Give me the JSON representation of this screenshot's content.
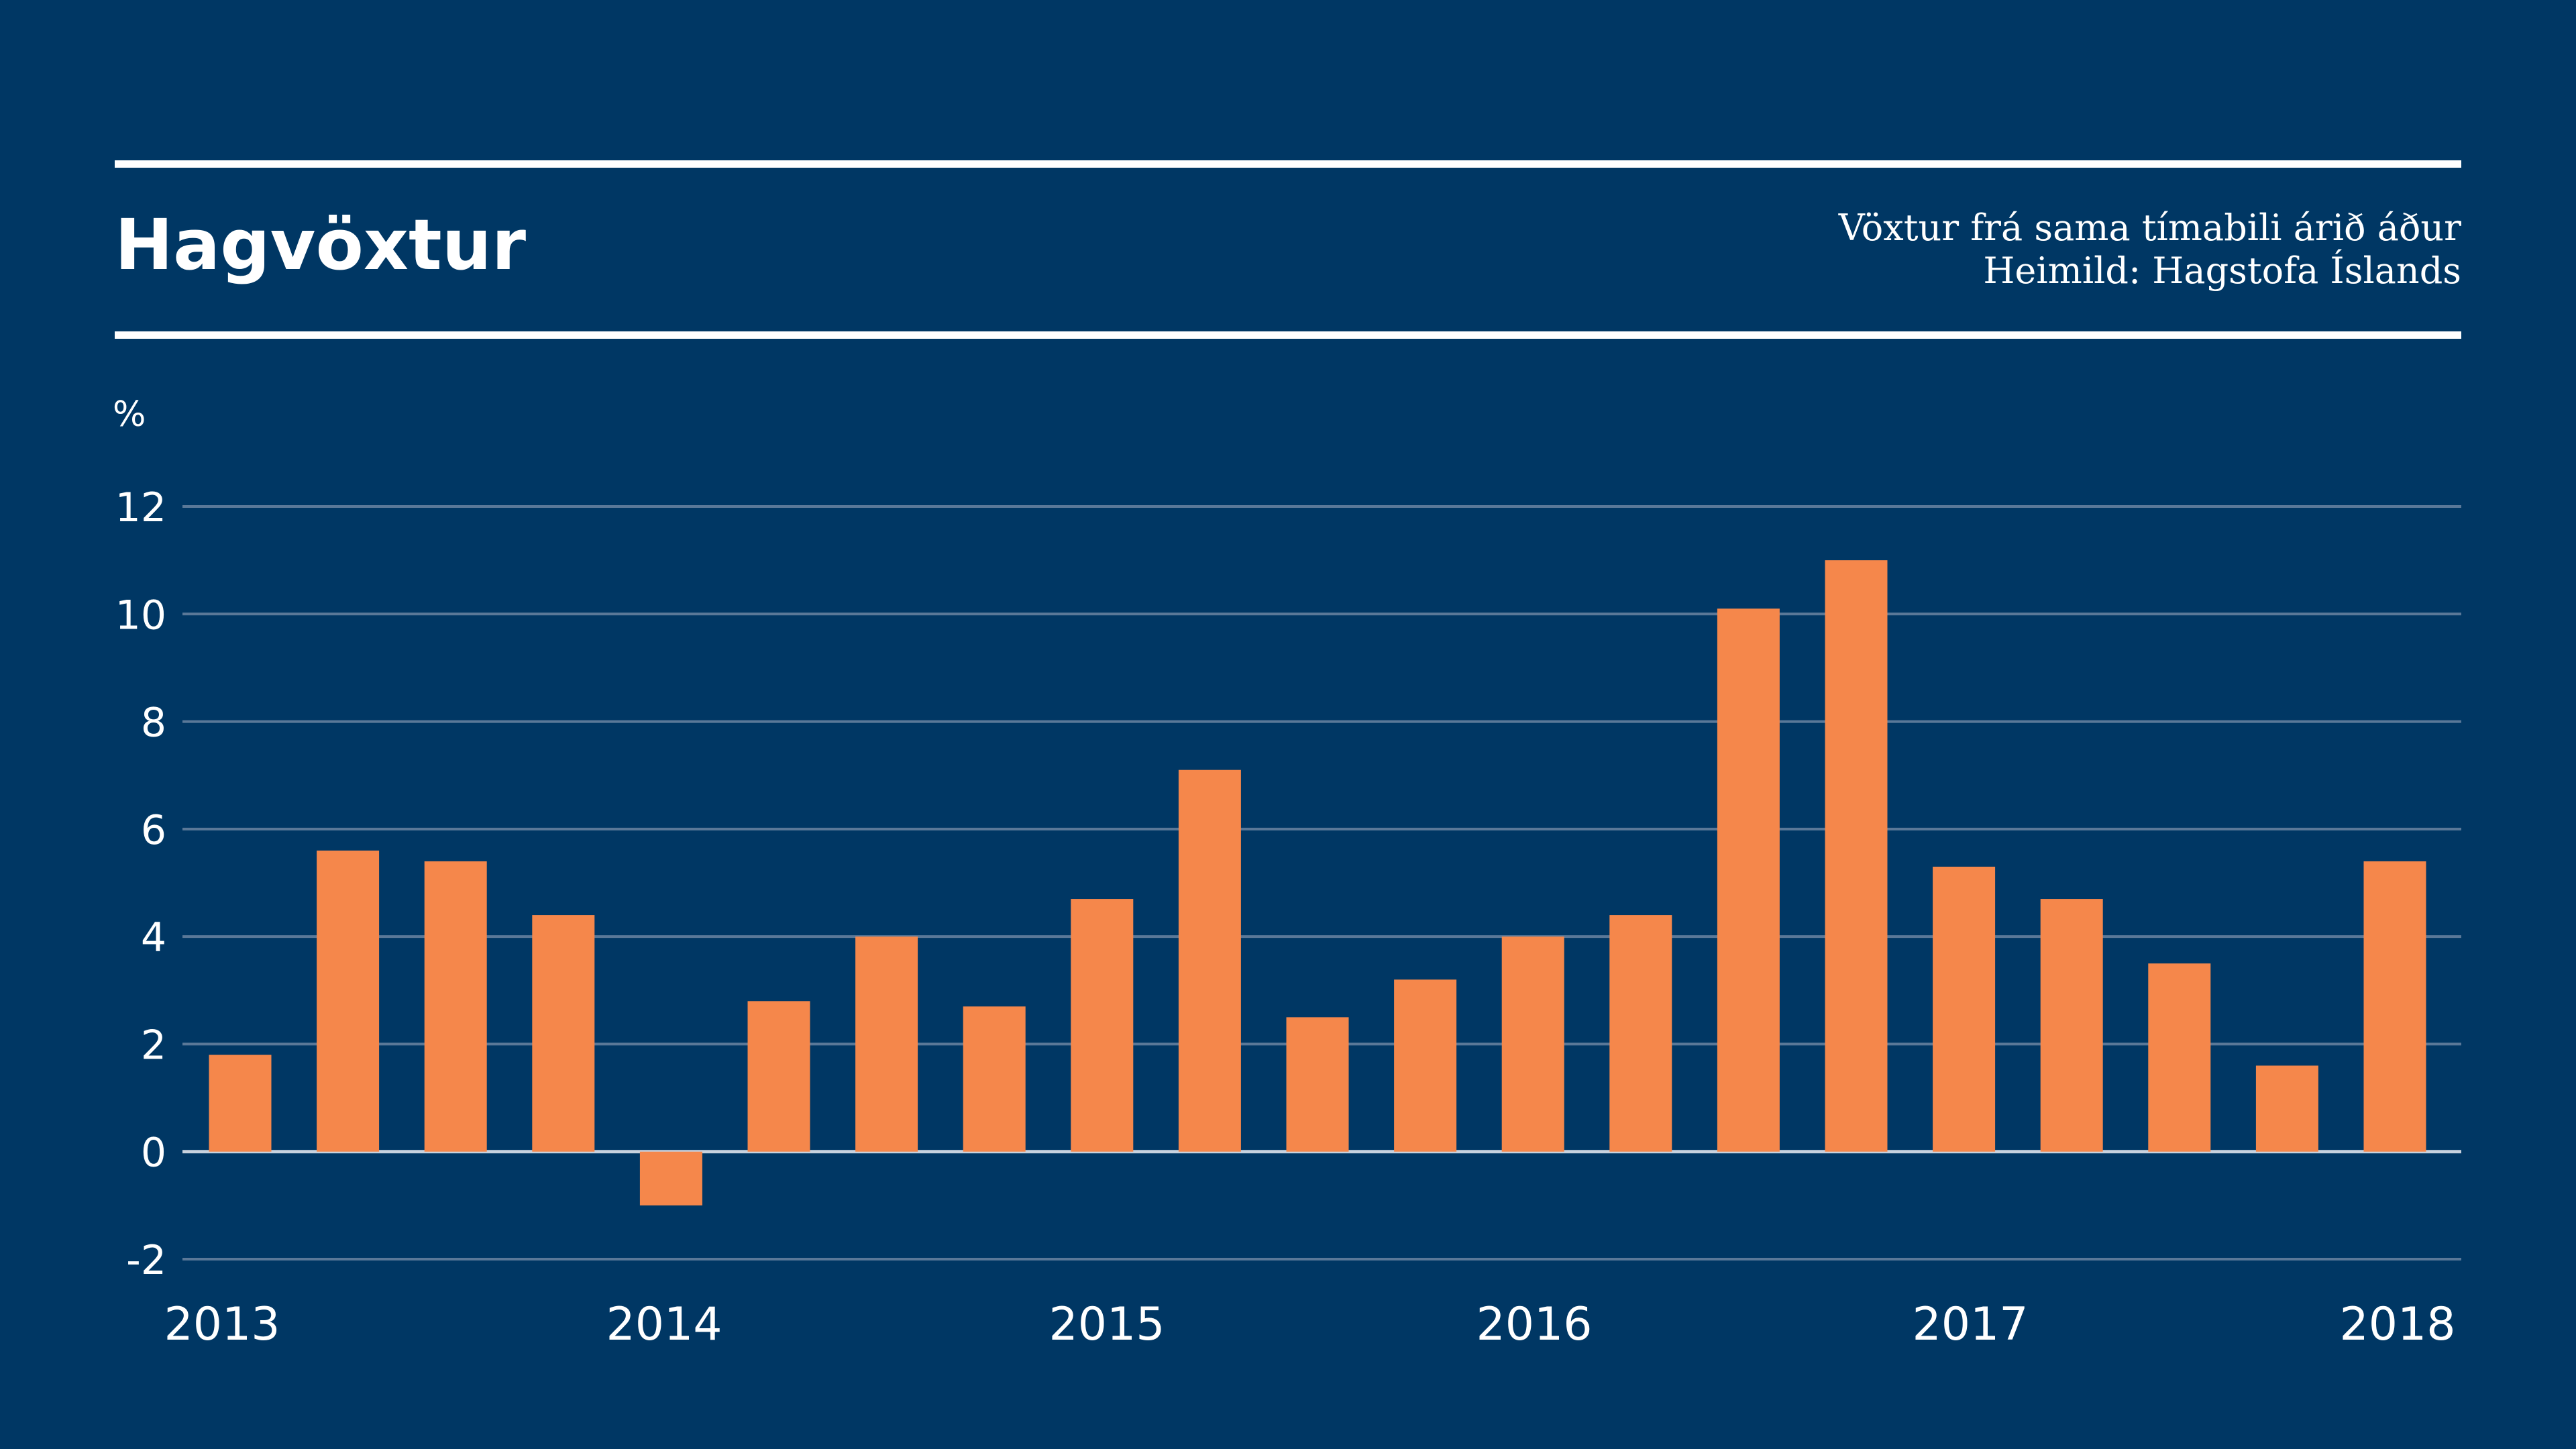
{
  "chart_data": {
    "type": "bar",
    "title": "Hagvöxtur",
    "subtitle": "Vöxtur frá sama tímabili árið áður",
    "source": "Heimild: Hagstofa Íslands",
    "ylabel": "%",
    "ylim": [
      -2,
      12
    ],
    "yticks": [
      "12",
      "10",
      "8",
      "6",
      "4",
      "2",
      "0",
      "-2"
    ],
    "ytick_values": [
      12,
      10,
      8,
      6,
      4,
      2,
      0,
      -2
    ],
    "xtick_labels": [
      "2013",
      "2014",
      "2015",
      "2016",
      "2017",
      "2018"
    ],
    "grid": true,
    "legend": "none",
    "bar_color": "#F5874B",
    "background_color": "#003764",
    "grid_color": "#5A7898",
    "series": [
      {
        "values": [
          1.8,
          5.6,
          5.4,
          4.4,
          -1.0,
          2.8,
          4.0,
          2.7,
          4.7,
          7.1,
          2.5,
          3.2,
          4.0,
          4.4,
          10.1,
          11.0,
          5.3,
          4.7,
          3.5,
          1.6,
          5.4
        ]
      }
    ]
  }
}
